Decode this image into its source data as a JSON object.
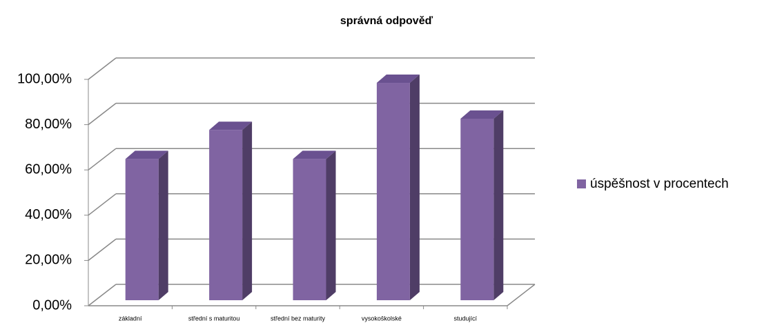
{
  "chart_data": {
    "type": "bar3d",
    "title": "správná odpověď",
    "categories": [
      "základní",
      "střední s maturitou",
      "střední bez maturity",
      "vysokoškolské",
      "studující"
    ],
    "series": [
      {
        "name": "úspěšnost v procentech",
        "color": "#8064a2",
        "values": [
          63,
          76,
          63,
          97,
          81
        ]
      }
    ],
    "ylim": [
      0,
      100
    ],
    "yticks": [
      {
        "value": 0,
        "label": "0,00%"
      },
      {
        "value": 20,
        "label": "20,00%"
      },
      {
        "value": 40,
        "label": "40,00%"
      },
      {
        "value": 60,
        "label": "60,00%"
      },
      {
        "value": 80,
        "label": "80,00%"
      },
      {
        "value": 100,
        "label": "100,00%"
      }
    ],
    "grid": true,
    "legend": "right"
  }
}
